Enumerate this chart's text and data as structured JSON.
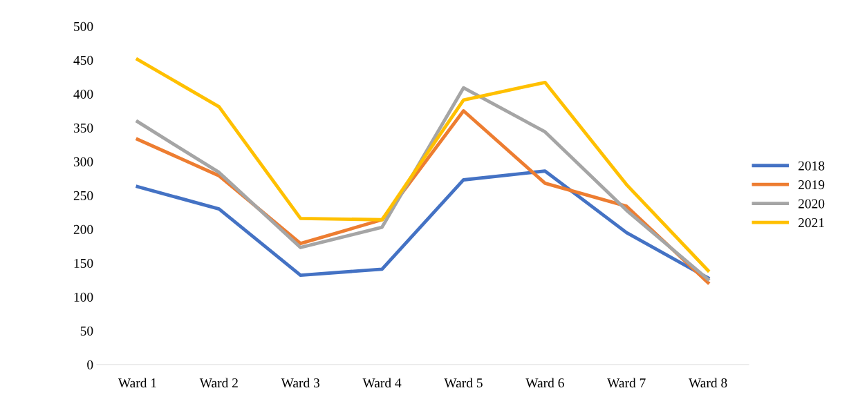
{
  "chart_data": {
    "type": "line",
    "categories": [
      "Ward 1",
      "Ward 2",
      "Ward 3",
      "Ward 4",
      "Ward 5",
      "Ward 6",
      "Ward 7",
      "Ward 8"
    ],
    "series": [
      {
        "name": "2018",
        "color": "#4472c4",
        "values": [
          263,
          230,
          132,
          141,
          273,
          286,
          195,
          128
        ]
      },
      {
        "name": "2019",
        "color": "#ed7d31",
        "values": [
          333,
          279,
          179,
          214,
          375,
          268,
          234,
          121
        ]
      },
      {
        "name": "2020",
        "color": "#a5a5a5",
        "values": [
          359,
          284,
          173,
          203,
          409,
          344,
          228,
          126
        ]
      },
      {
        "name": "2021",
        "color": "#ffc000",
        "values": [
          451,
          381,
          216,
          214,
          391,
          417,
          266,
          139
        ]
      }
    ],
    "ylim": [
      0,
      500
    ],
    "yticks": [
      0,
      50,
      100,
      150,
      200,
      250,
      300,
      350,
      400,
      450,
      500
    ],
    "grid": false,
    "legend": "right",
    "marker": "none",
    "line_style": "solid"
  }
}
